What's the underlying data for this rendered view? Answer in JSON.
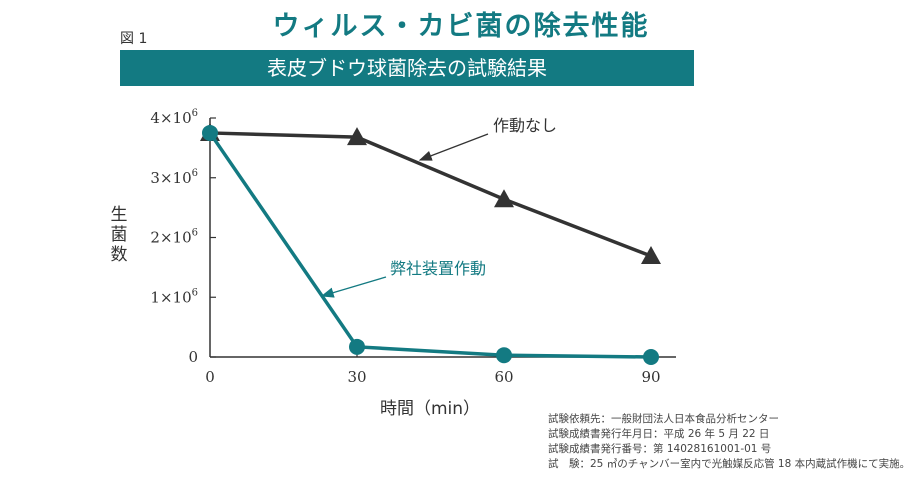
{
  "header": {
    "title": "ウィルス・カビ菌の除去性能",
    "figure_label": "図 1",
    "banner": "表皮ブドウ球菌除去の試験結果"
  },
  "chart_data": {
    "type": "line",
    "title": "表皮ブドウ球菌除去の試験結果",
    "xlabel": "時間（min）",
    "ylabel": "生菌数",
    "x": [
      0,
      30,
      60,
      90
    ],
    "xlim": [
      0,
      90
    ],
    "ylim": [
      0,
      4000000
    ],
    "x_ticks": [
      "0",
      "30",
      "60",
      "90"
    ],
    "y_ticks": [
      {
        "base": "0",
        "exp": ""
      },
      {
        "base": "1×10",
        "exp": "6"
      },
      {
        "base": "2×10",
        "exp": "6"
      },
      {
        "base": "3×10",
        "exp": "6"
      },
      {
        "base": "4×10",
        "exp": "6"
      }
    ],
    "grid": false,
    "series": [
      {
        "name": "作動なし",
        "values": [
          3750000,
          3680000,
          2640000,
          1690000
        ],
        "color": "#333333",
        "marker": "triangle"
      },
      {
        "name": "弊社装置作動",
        "values": [
          3750000,
          170000,
          30000,
          0
        ],
        "color": "#137a82",
        "marker": "circle"
      }
    ]
  },
  "notes": [
    "試験依頼先：一般財団法人日本食品分析センター",
    "試験成績書発行年月日：平成 26 年 5 月 22 日",
    "試験成績書発行番号：第 14028161001-01 号",
    "試　験：25 ㎥のチャンバー室内で光触媒反応管 18 本内蔵試作機にて実施。"
  ],
  "colors": {
    "accent": "#137a82",
    "dark": "#333333"
  }
}
